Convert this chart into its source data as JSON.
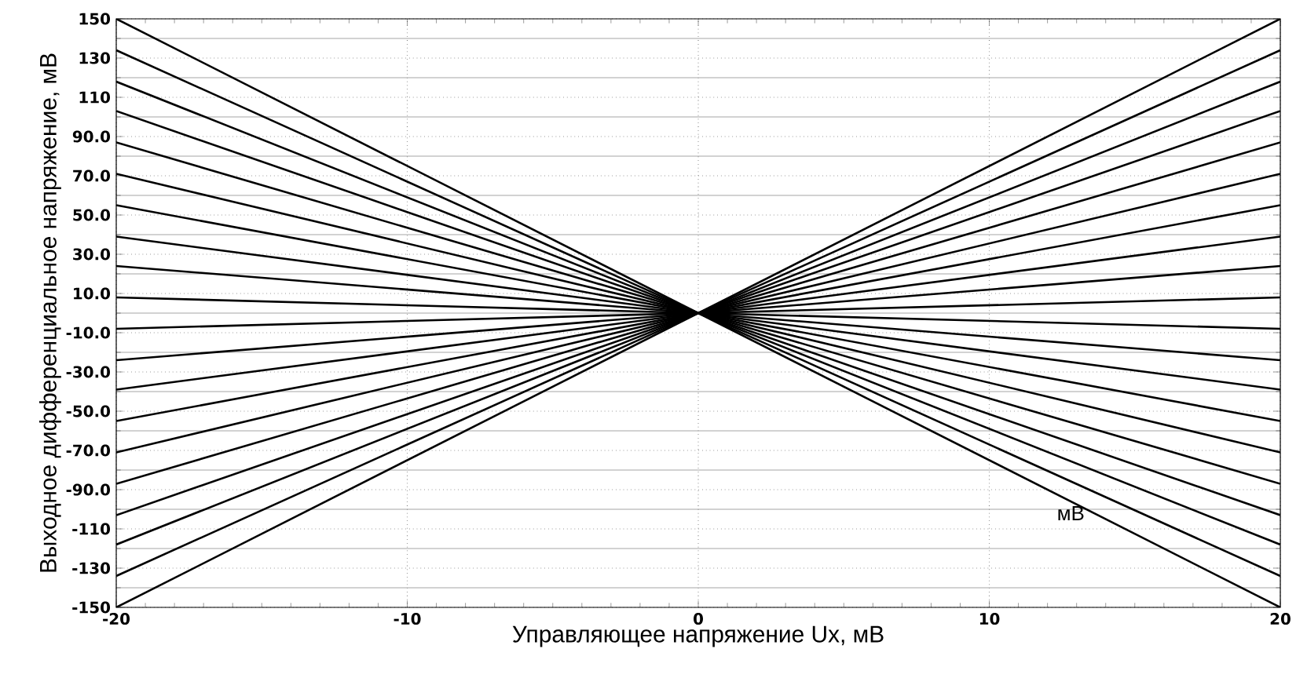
{
  "chart_data": {
    "type": "line",
    "xlabel": "Управляющее напряжение Ux, мВ",
    "ylabel": "Выходное дифференциальное напряжение, мВ",
    "annotations": [
      "мВ"
    ],
    "x": [
      -20,
      20
    ],
    "xlim": [
      -20,
      20
    ],
    "ylim": [
      -150,
      150
    ],
    "xticks": [
      -20,
      -10,
      0,
      10,
      20
    ],
    "yticks": [
      {
        "value": -150,
        "label": "-150"
      },
      {
        "value": -130,
        "label": "-130"
      },
      {
        "value": -110,
        "label": "-110"
      },
      {
        "value": -90,
        "label": "-90.0"
      },
      {
        "value": -70,
        "label": "-70.0"
      },
      {
        "value": -50,
        "label": "-50.0"
      },
      {
        "value": -30,
        "label": "-30.0"
      },
      {
        "value": -10,
        "label": "-10.0"
      },
      {
        "value": 10,
        "label": "10.0"
      },
      {
        "value": 30,
        "label": "30.0"
      },
      {
        "value": 50,
        "label": "50.0"
      },
      {
        "value": 70,
        "label": "70.0"
      },
      {
        "value": 90,
        "label": "90.0"
      },
      {
        "value": 110,
        "label": "110"
      },
      {
        "value": 130,
        "label": "130"
      },
      {
        "value": 150,
        "label": "150"
      }
    ],
    "grid": true,
    "marker": "none",
    "line_style": "solid",
    "series": [
      {
        "color": "#000000",
        "values": [
          150,
          -150
        ]
      },
      {
        "color": "#000000",
        "values": [
          134,
          -134
        ]
      },
      {
        "color": "#000000",
        "values": [
          118,
          -118
        ]
      },
      {
        "color": "#000000",
        "values": [
          103,
          -103
        ]
      },
      {
        "color": "#000000",
        "values": [
          87,
          -87
        ]
      },
      {
        "color": "#000000",
        "values": [
          71,
          -71
        ]
      },
      {
        "color": "#000000",
        "values": [
          55,
          -55
        ]
      },
      {
        "color": "#000000",
        "values": [
          39,
          -39
        ]
      },
      {
        "color": "#000000",
        "values": [
          24,
          -24
        ]
      },
      {
        "color": "#000000",
        "values": [
          8,
          -8
        ]
      },
      {
        "color": "#000000",
        "values": [
          -8,
          8
        ]
      },
      {
        "color": "#000000",
        "values": [
          -24,
          24
        ]
      },
      {
        "color": "#000000",
        "values": [
          -39,
          39
        ]
      },
      {
        "color": "#000000",
        "values": [
          -55,
          55
        ]
      },
      {
        "color": "#000000",
        "values": [
          -71,
          71
        ]
      },
      {
        "color": "#000000",
        "values": [
          -87,
          87
        ]
      },
      {
        "color": "#000000",
        "values": [
          -103,
          103
        ]
      },
      {
        "color": "#000000",
        "values": [
          -118,
          118
        ]
      },
      {
        "color": "#000000",
        "values": [
          -134,
          134
        ]
      },
      {
        "color": "#000000",
        "values": [
          -150,
          150
        ]
      }
    ]
  }
}
